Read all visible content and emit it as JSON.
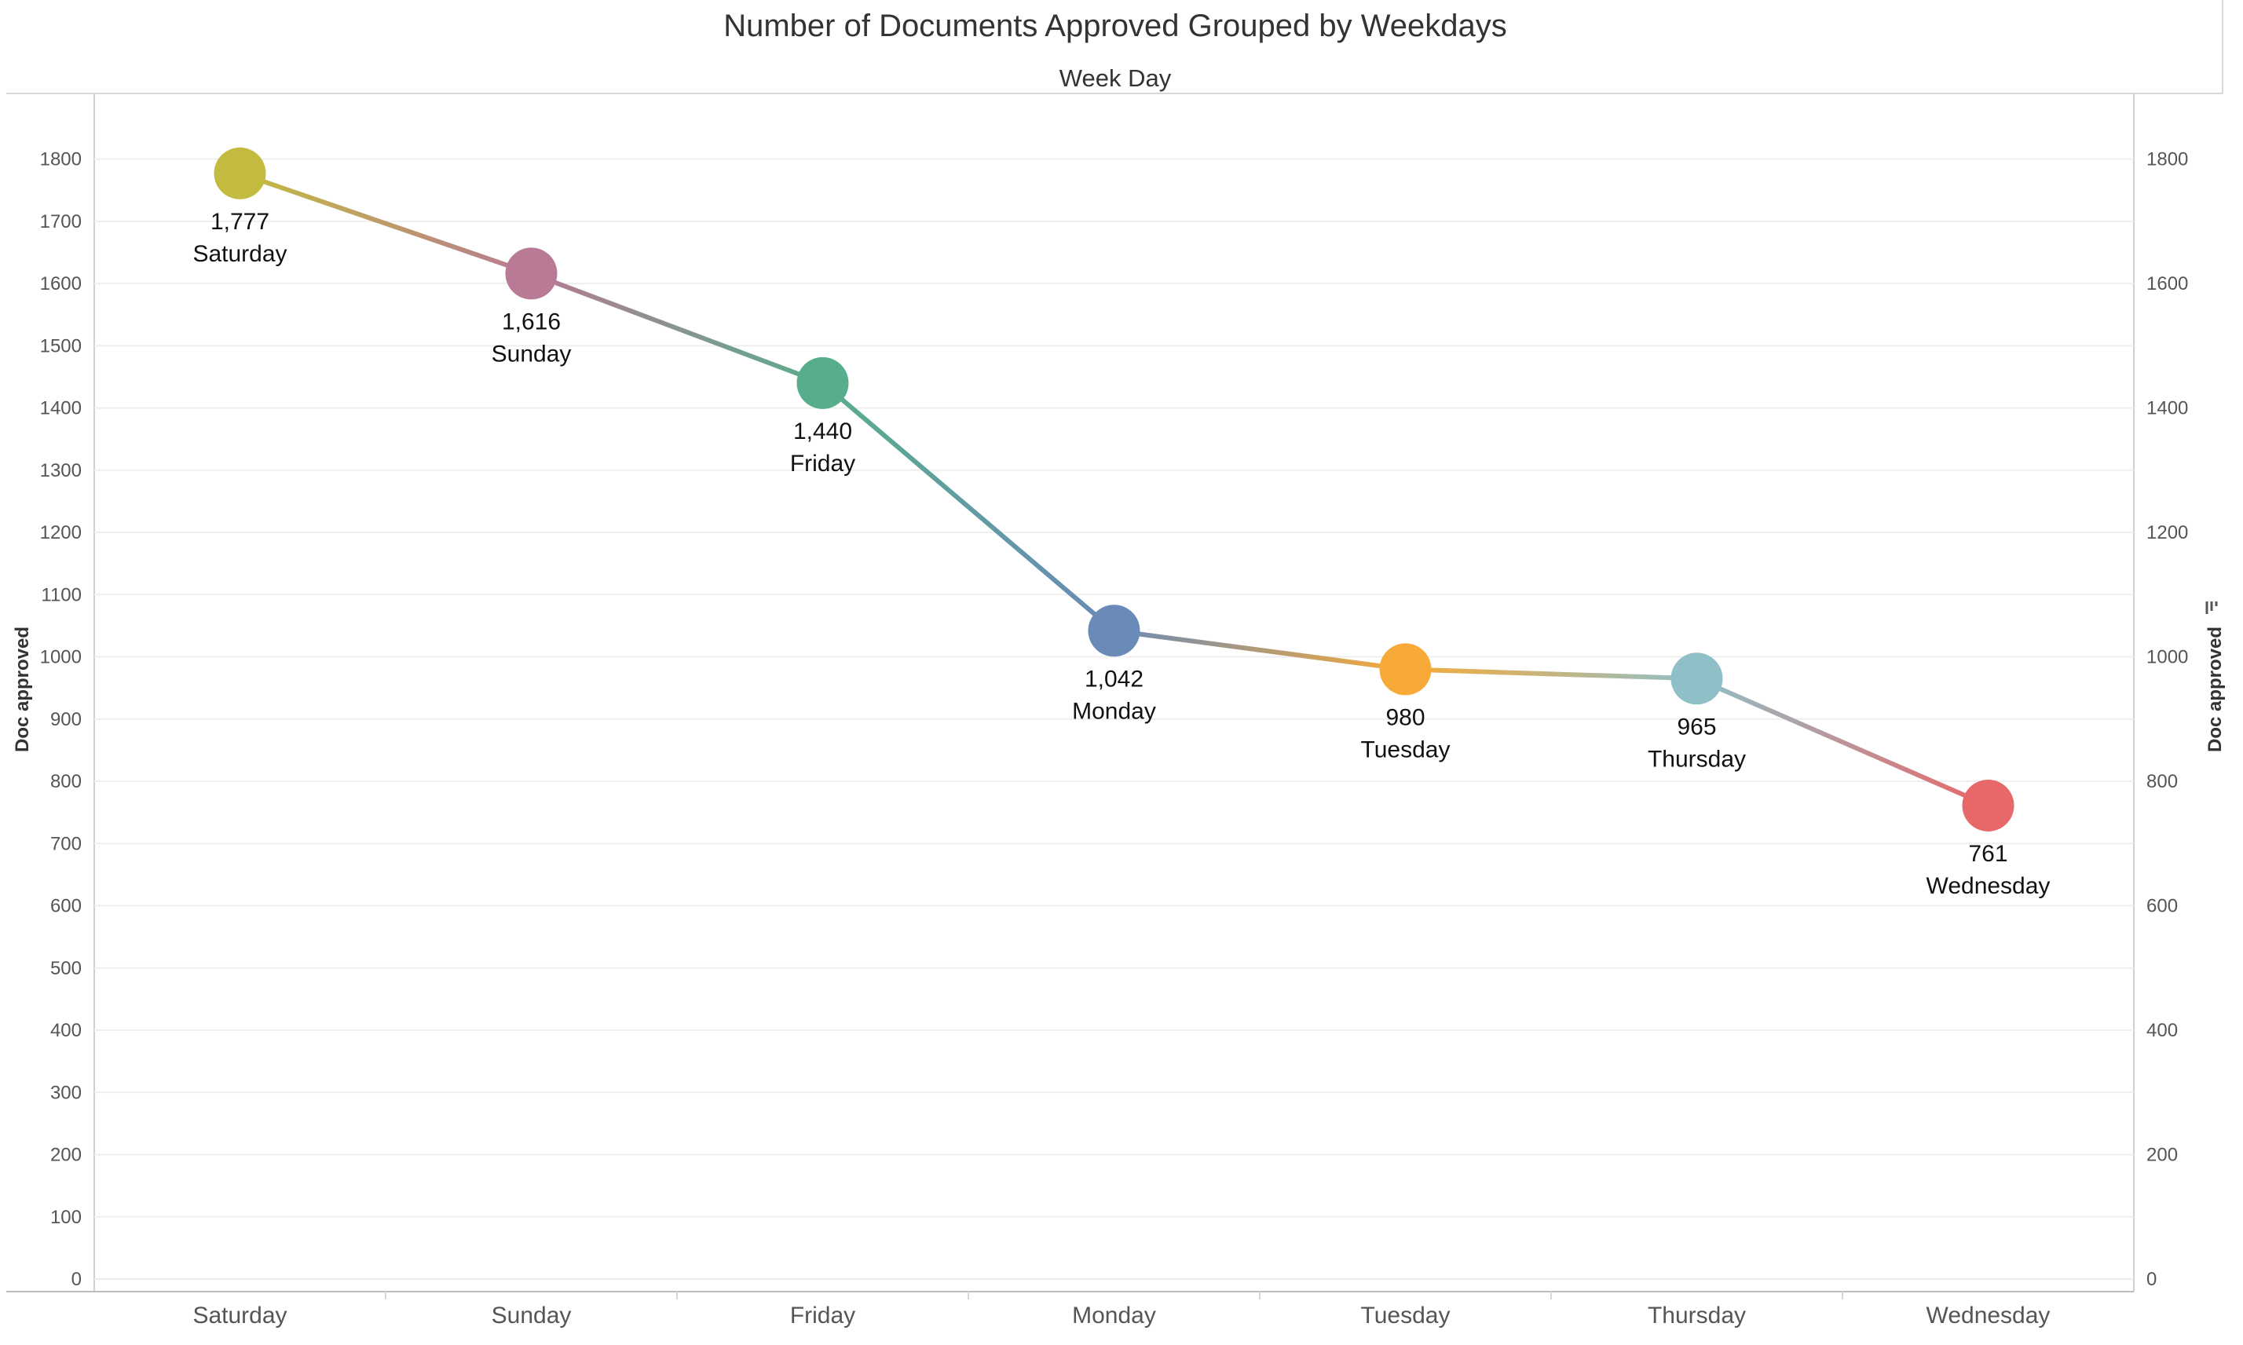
{
  "chart_data": {
    "type": "line",
    "title": "Number of Documents Approved Grouped by Weekdays",
    "x_axis_title": "Week Day",
    "ylabel": "Doc approved",
    "y2label": "Doc approved",
    "categories": [
      "Saturday",
      "Sunday",
      "Friday",
      "Monday",
      "Tuesday",
      "Thursday",
      "Wednesday"
    ],
    "values": [
      1777,
      1616,
      1440,
      1042,
      980,
      965,
      761
    ],
    "value_labels": [
      "1,777",
      "1,616",
      "1,440",
      "1,042",
      "980",
      "965",
      "761"
    ],
    "point_colors": [
      "#c3bb3f",
      "#b87a94",
      "#58ae8c",
      "#6a8ab7",
      "#f8aa38",
      "#8fc0c8",
      "#e8686a"
    ],
    "y_axis": {
      "ylim": [
        0,
        1855
      ],
      "ticks": [
        0,
        100,
        200,
        300,
        400,
        500,
        600,
        700,
        800,
        900,
        1000,
        1100,
        1200,
        1300,
        1400,
        1500,
        1600,
        1700,
        1800
      ]
    },
    "y2_axis": {
      "ylim": [
        0,
        1855
      ],
      "ticks": [
        0,
        200,
        400,
        600,
        800,
        1000,
        1200,
        1400,
        1600,
        1800
      ]
    },
    "grid": true,
    "legend": "none",
    "sort_icon": "sort-descending-icon"
  }
}
